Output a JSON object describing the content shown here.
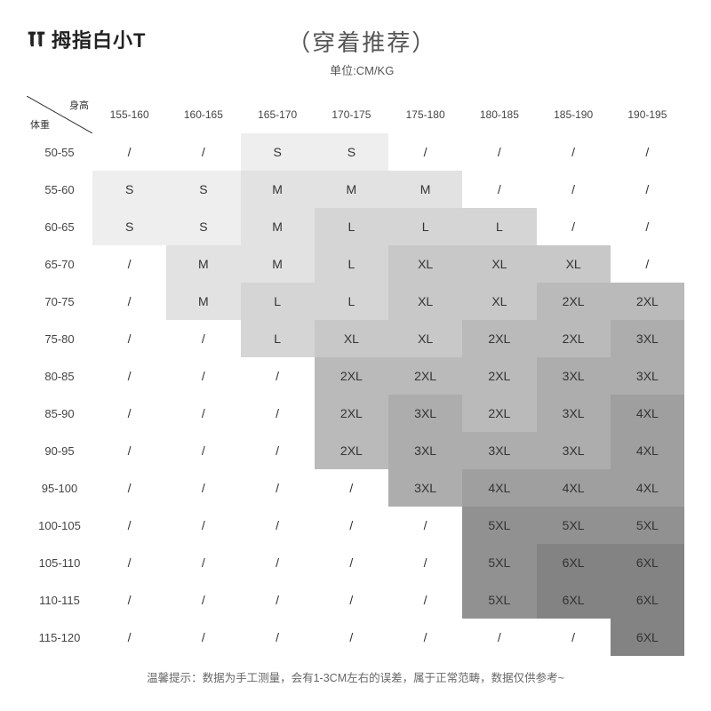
{
  "brand": "拇指白小T",
  "title": "（穿着推荐）",
  "subtitle": "单位:CM/KG",
  "corner": {
    "top": "身高",
    "bottom": "体重"
  },
  "heights": [
    "155-160",
    "160-165",
    "165-170",
    "170-175",
    "175-180",
    "180-185",
    "185-190",
    "190-195"
  ],
  "weights": [
    "50-55",
    "55-60",
    "60-65",
    "65-70",
    "70-75",
    "75-80",
    "80-85",
    "85-90",
    "90-95",
    "95-100",
    "100-105",
    "105-110",
    "110-115",
    "115-120"
  ],
  "grid": [
    [
      "/",
      "/",
      "S",
      "S",
      "/",
      "/",
      "/",
      "/"
    ],
    [
      "S",
      "S",
      "M",
      "M",
      "M",
      "/",
      "/",
      "/"
    ],
    [
      "S",
      "S",
      "M",
      "L",
      "L",
      "L",
      "/",
      "/"
    ],
    [
      "/",
      "M",
      "M",
      "L",
      "XL",
      "XL",
      "XL",
      "/"
    ],
    [
      "/",
      "M",
      "L",
      "L",
      "XL",
      "XL",
      "2XL",
      "2XL"
    ],
    [
      "/",
      "/",
      "L",
      "XL",
      "XL",
      "2XL",
      "2XL",
      "3XL"
    ],
    [
      "/",
      "/",
      "/",
      "2XL",
      "2XL",
      "2XL",
      "3XL",
      "3XL"
    ],
    [
      "/",
      "/",
      "/",
      "2XL",
      "3XL",
      "2XL",
      "3XL",
      "4XL"
    ],
    [
      "/",
      "/",
      "/",
      "2XL",
      "3XL",
      "3XL",
      "3XL",
      "4XL"
    ],
    [
      "/",
      "/",
      "/",
      "/",
      "3XL",
      "4XL",
      "4XL",
      "4XL"
    ],
    [
      "/",
      "/",
      "/",
      "/",
      "/",
      "5XL",
      "5XL",
      "5XL"
    ],
    [
      "/",
      "/",
      "/",
      "/",
      "/",
      "5XL",
      "6XL",
      "6XL"
    ],
    [
      "/",
      "/",
      "/",
      "/",
      "/",
      "5XL",
      "6XL",
      "6XL"
    ],
    [
      "/",
      "/",
      "/",
      "/",
      "/",
      "/",
      "/",
      "6XL"
    ]
  ],
  "shade_map": {
    "S": "#eeeeee",
    "M": "#e2e2e2",
    "L": "#d5d5d5",
    "XL": "#c8c8c8",
    "2XL": "#bababa",
    "3XL": "#adadad",
    "4XL": "#9f9f9f",
    "5XL": "#919191",
    "6XL": "#838383"
  },
  "footer": "温馨提示：数据为手工测量，会有1-3CM左右的误差，属于正常范畴，数据仅供参考~"
}
